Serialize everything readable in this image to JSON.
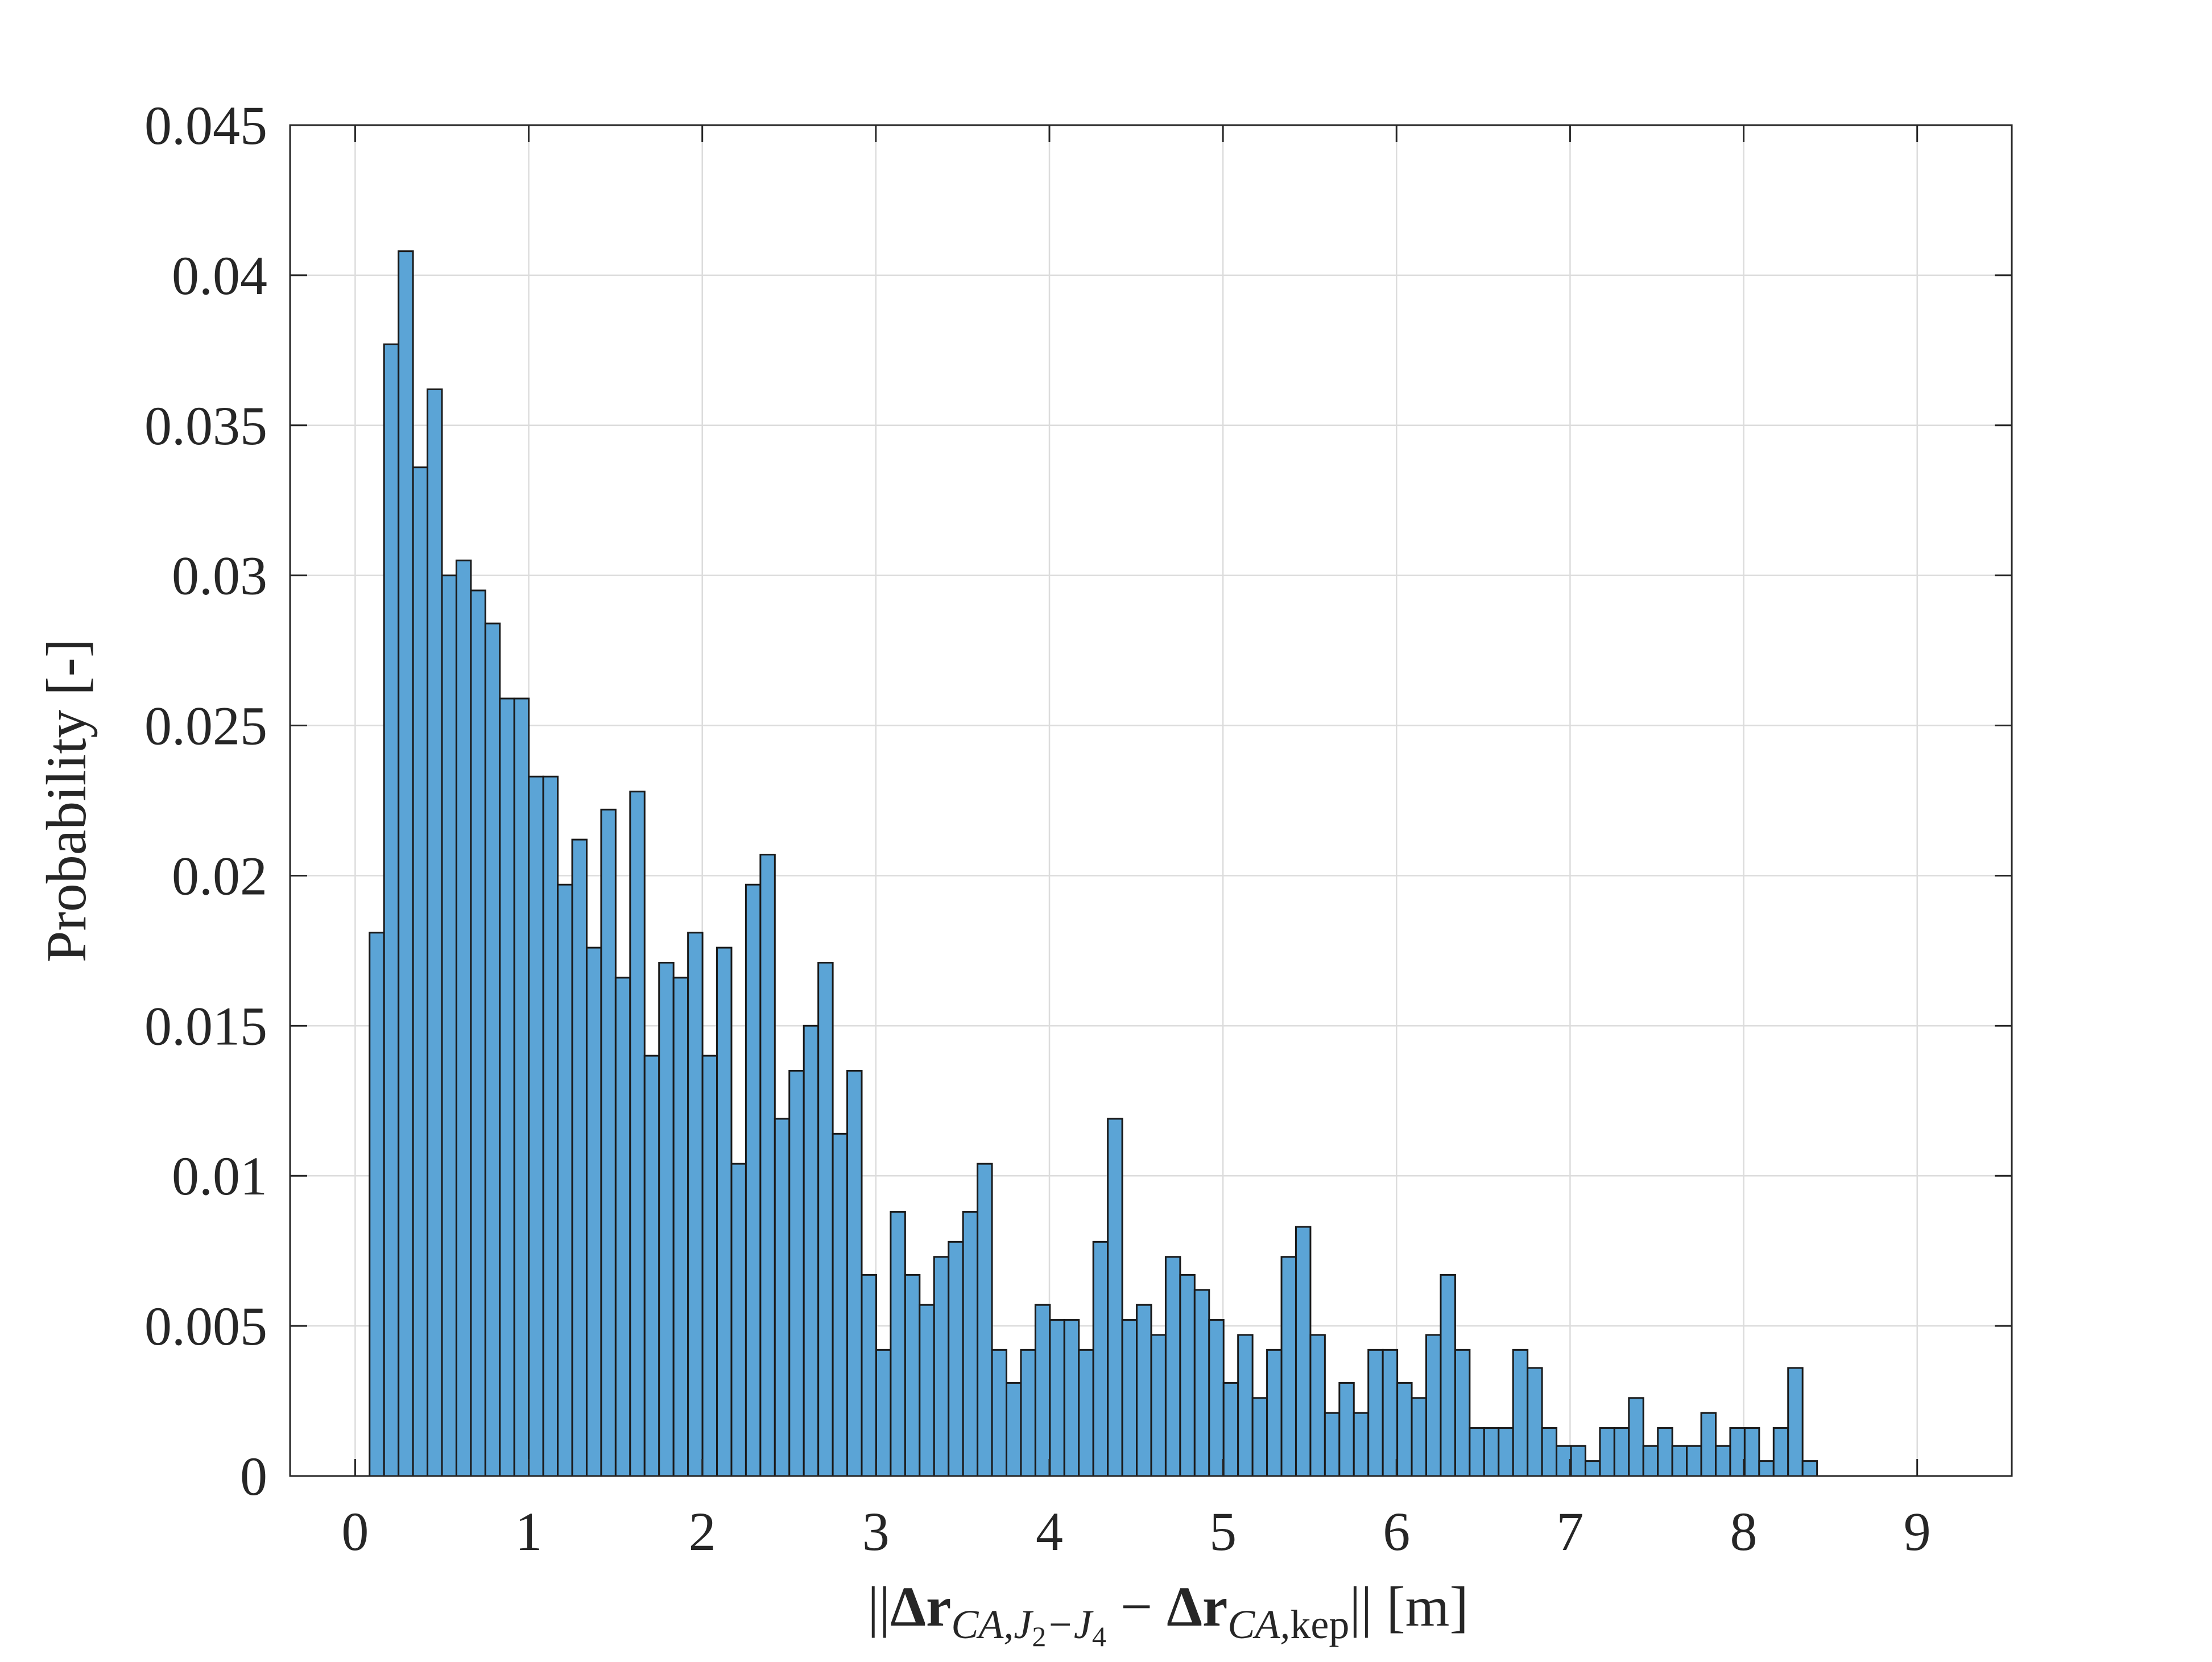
{
  "chart_data": {
    "type": "bar",
    "subtype": "histogram",
    "title": "",
    "xlabel": "||Δr_{CA,J2−J4} − Δr_{CA,kep}|| [m]",
    "ylabel": "Probability [-]",
    "xlim": [
      -0.375,
      9.545
    ],
    "ylim": [
      0,
      0.045
    ],
    "xticks": [
      0,
      1,
      2,
      3,
      4,
      5,
      6,
      7,
      8,
      9
    ],
    "xtick_labels": [
      "0",
      "1",
      "2",
      "3",
      "4",
      "5",
      "6",
      "7",
      "8",
      "9"
    ],
    "yticks": [
      0,
      0.005,
      0.01,
      0.015,
      0.02,
      0.025,
      0.03,
      0.035,
      0.04,
      0.045
    ],
    "ytick_labels": [
      "0",
      "0.005",
      "0.01",
      "0.015",
      "0.02",
      "0.025",
      "0.03",
      "0.035",
      "0.04",
      "0.045"
    ],
    "grid": true,
    "legend": "none",
    "bin_start": 0.083,
    "bin_width": 0.0834,
    "values": [
      0.0181,
      0.0377,
      0.0408,
      0.0336,
      0.0362,
      0.03,
      0.0305,
      0.0295,
      0.0284,
      0.0259,
      0.0259,
      0.0233,
      0.0233,
      0.0197,
      0.0212,
      0.0176,
      0.0222,
      0.0166,
      0.0228,
      0.014,
      0.0171,
      0.0166,
      0.0181,
      0.014,
      0.0176,
      0.0104,
      0.0197,
      0.0207,
      0.0119,
      0.0135,
      0.015,
      0.0171,
      0.0114,
      0.0135,
      0.0067,
      0.0042,
      0.0088,
      0.0067,
      0.0057,
      0.0073,
      0.0078,
      0.0088,
      0.0104,
      0.0042,
      0.0031,
      0.0042,
      0.0057,
      0.0052,
      0.0052,
      0.0042,
      0.0078,
      0.0119,
      0.0052,
      0.0057,
      0.0047,
      0.0073,
      0.0067,
      0.0062,
      0.0052,
      0.0031,
      0.0047,
      0.0026,
      0.0042,
      0.0073,
      0.0083,
      0.0047,
      0.0021,
      0.0031,
      0.0021,
      0.0042,
      0.0042,
      0.0031,
      0.0026,
      0.0047,
      0.0067,
      0.0042,
      0.0016,
      0.0016,
      0.0016,
      0.0042,
      0.0036,
      0.0016,
      0.001,
      0.001,
      0.0005,
      0.0016,
      0.0016,
      0.0026,
      0.001,
      0.0016,
      0.001,
      0.001,
      0.0021,
      0.001,
      0.0016,
      0.0016,
      0.0005,
      0.0016,
      0.0036,
      0.0005
    ],
    "bar_color": "#5ba4d6",
    "bar_edge_color": "#1a1a1a"
  }
}
